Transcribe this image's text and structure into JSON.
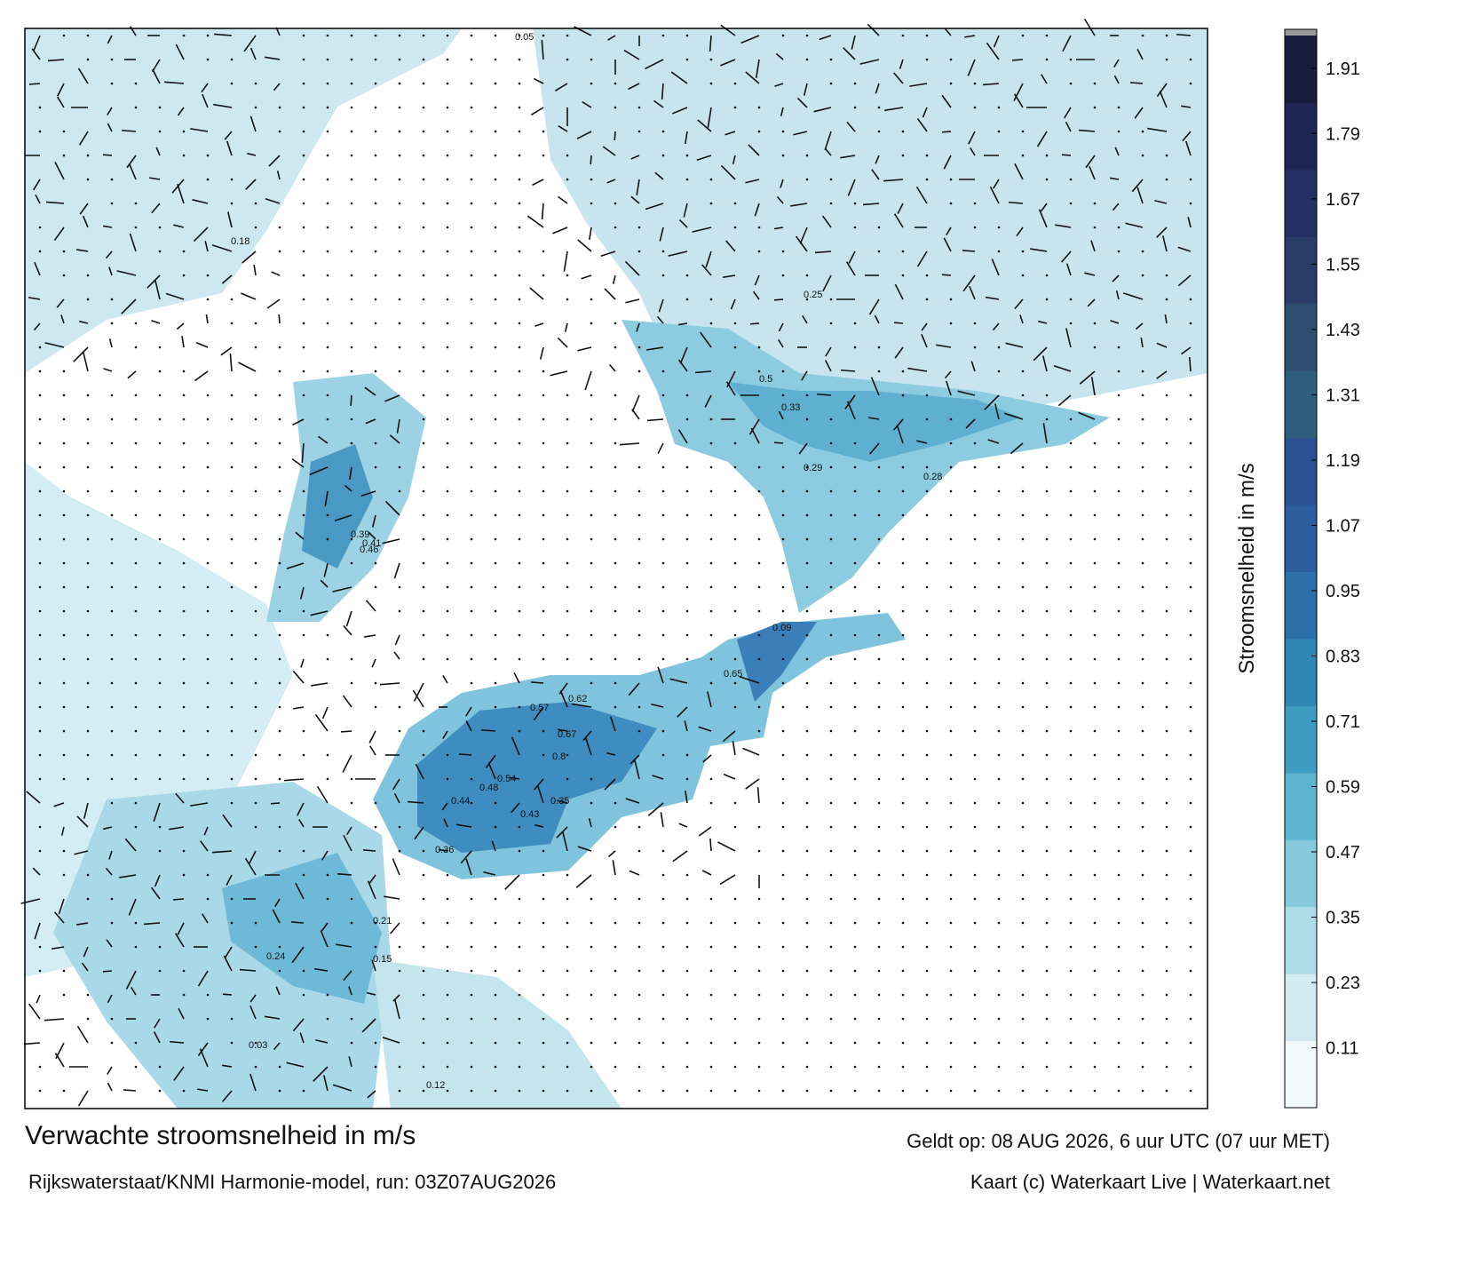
{
  "title": "Verwachte stroomsnelheid in m/s",
  "subtitle": "Rijkswaterstaat/KNMI Harmonie-model, run: 03Z07AUG2026",
  "valid": "Geldt op: 08 AUG 2026, 6 uur UTC (07 uur MET)",
  "credit": "Kaart (c) Waterkaart Live | Waterkaart.net",
  "colorbar": {
    "label": "Stroomsnelheid in m/s",
    "lim": [
      0,
      1.97
    ],
    "ticks": [
      0.11,
      0.23,
      0.35,
      0.47,
      0.59,
      0.71,
      0.83,
      0.95,
      1.07,
      1.19,
      1.31,
      1.43,
      1.55,
      1.67,
      1.79,
      1.91
    ],
    "colors": [
      "#f2f9fb",
      "#d2ebf2",
      "#aedbe8",
      "#86c9dd",
      "#5eb4cf",
      "#3c9dc0",
      "#2e86b3",
      "#2b70a8",
      "#2c5e9f",
      "#2d4f94",
      "#2f5e7c",
      "#2d4e6e",
      "#2a3d68",
      "#243063",
      "#1e2553",
      "#171c3d"
    ]
  },
  "map": {
    "labels": [
      0.65,
      0.8,
      0.67,
      0.62,
      0.57,
      0.54,
      0.48,
      0.44,
      0.43,
      0.36,
      0.5,
      0.39,
      0.41,
      0.46,
      0.35,
      0.33,
      0.29,
      0.28,
      0.25,
      0.24,
      0.21,
      0.18,
      0.15,
      0.12,
      0.09,
      0.05,
      0.03
    ]
  }
}
